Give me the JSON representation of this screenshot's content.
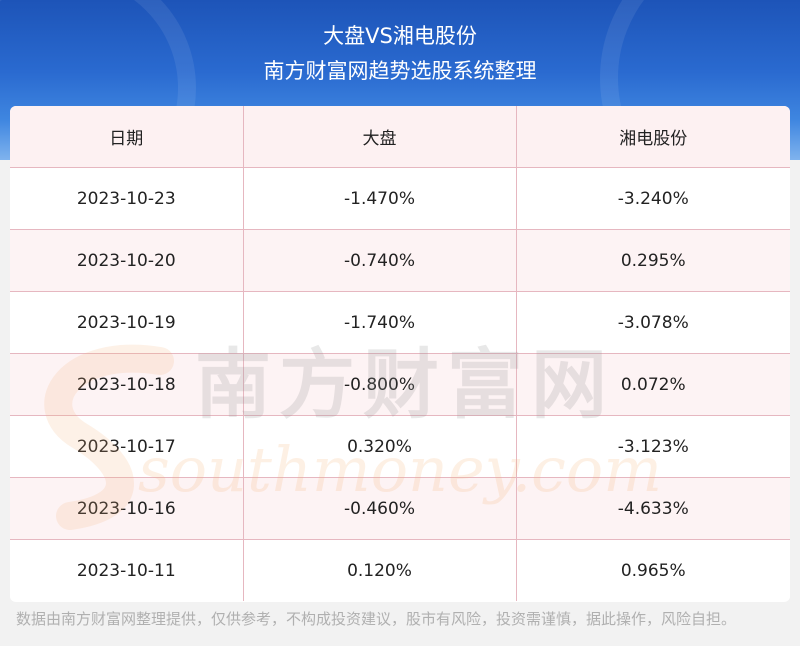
{
  "header": {
    "title_line1": "大盘VS湘电股份",
    "title_line2": "南方财富网趋势选股系统整理"
  },
  "table": {
    "columns": [
      "日期",
      "大盘",
      "湘电股份"
    ],
    "rows": [
      [
        "2023-10-23",
        "-1.470%",
        "-3.240%"
      ],
      [
        "2023-10-20",
        "-0.740%",
        "0.295%"
      ],
      [
        "2023-10-19",
        "-1.740%",
        "-3.078%"
      ],
      [
        "2023-10-18",
        "-0.800%",
        "0.072%"
      ],
      [
        "2023-10-17",
        "0.320%",
        "-3.123%"
      ],
      [
        "2023-10-16",
        "-0.460%",
        "-4.633%"
      ],
      [
        "2023-10-11",
        "0.120%",
        "0.965%"
      ]
    ]
  },
  "watermark": {
    "chinese": "南方财富网",
    "latin": "southmoney.com"
  },
  "footer": {
    "disclaimer": "数据由南方财富网整理提供，仅供参考，不构成投资建议，股市有风险，投资需谨慎，据此操作，风险自担。"
  },
  "colors": {
    "header_blue": "#1d54b8",
    "table_border": "#e6b7c0",
    "row_tint": "#fdf3f4"
  }
}
